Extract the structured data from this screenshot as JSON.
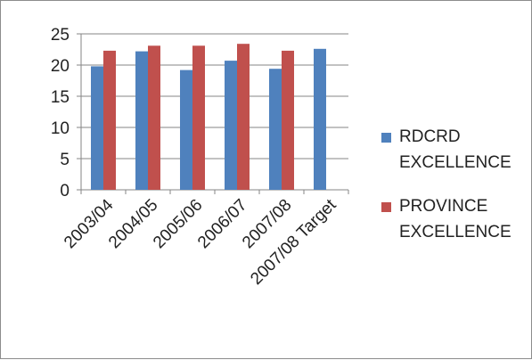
{
  "chart_data": {
    "type": "bar",
    "categories": [
      "2003/04",
      "2004/05",
      "2005/06",
      "2006/07",
      "2007/08",
      "2007/08 Target"
    ],
    "series": [
      {
        "name": "RDCRD EXCELLENCE",
        "values": [
          19.8,
          22.2,
          19.2,
          20.7,
          19.4,
          22.6
        ],
        "color": "#4f81bd"
      },
      {
        "name": "PROVINCE EXCELLENCE",
        "values": [
          22.3,
          23.1,
          23.1,
          23.4,
          22.3,
          null
        ],
        "color": "#c0504d"
      }
    ],
    "yticks": [
      "0",
      "5",
      "10",
      "15",
      "20",
      "25"
    ],
    "ylim": [
      0,
      25
    ],
    "grid": true,
    "legend_position": "right",
    "title": "",
    "xlabel": "",
    "ylabel": ""
  }
}
